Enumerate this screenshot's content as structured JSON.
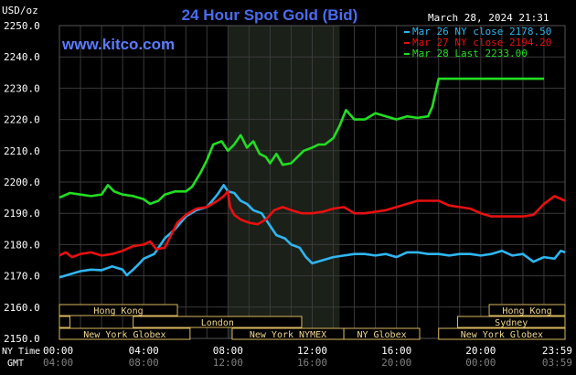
{
  "header": {
    "title": "24 Hour Spot Gold (Bid)",
    "unit_label": "USD/oz",
    "timestamp": "March 28, 2024 21:31",
    "site": "www.kitco.com"
  },
  "colors": {
    "background": "#000000",
    "grid": "#3a3a3a",
    "axis_text": "#ffffff",
    "title": "#4a6cf0",
    "site": "#5a7cff",
    "shade": "#1b2018",
    "band_text": "#f0d890",
    "band_border": "#d9b860"
  },
  "chart_data": {
    "type": "line",
    "title": "24 Hour Spot Gold (Bid)",
    "ylabel": "USD/oz",
    "xlabel": "",
    "ylim": [
      2150,
      2250
    ],
    "yticks": [
      2150,
      2160,
      2170,
      2180,
      2190,
      2200,
      2210,
      2220,
      2230,
      2240,
      2250
    ],
    "ytick_labels": [
      "2150.0",
      "2160.0",
      "2170.0",
      "2180.0",
      "2190.0",
      "2200.0",
      "2210.0",
      "2220.0",
      "2230.0",
      "2240.0",
      "2250.0"
    ],
    "xlim": [
      0,
      24
    ],
    "xticks": [
      0,
      4,
      8,
      12,
      16,
      20,
      24
    ],
    "xtick_labels_ny": [
      "00:00",
      "04:00",
      "08:00",
      "12:00",
      "16:00",
      "20:00",
      "23:59"
    ],
    "xtick_labels_gmt": [
      "04:00",
      "08:00",
      "12:00",
      "16:00",
      "20:00",
      "00:00",
      "03:59"
    ],
    "row_labels": {
      "ny": "NY Time",
      "gmt": "GMT"
    },
    "grid": true,
    "legend_position": "top-right",
    "shaded_x_range": [
      8.0,
      13.3
    ],
    "series": [
      {
        "name": "Mar 26 NY close 2178.50",
        "color": "#2fb6f0",
        "points": [
          [
            0,
            2169.5
          ],
          [
            0.5,
            2170.5
          ],
          [
            1,
            2171.5
          ],
          [
            1.5,
            2172
          ],
          [
            2,
            2171.8
          ],
          [
            2.5,
            2173
          ],
          [
            3,
            2172
          ],
          [
            3.2,
            2170.2
          ],
          [
            3.5,
            2172
          ],
          [
            3.8,
            2174
          ],
          [
            4,
            2175.5
          ],
          [
            4.5,
            2177
          ],
          [
            5,
            2182
          ],
          [
            5.5,
            2185
          ],
          [
            6,
            2189
          ],
          [
            6.5,
            2191
          ],
          [
            7,
            2192
          ],
          [
            7.5,
            2196
          ],
          [
            7.8,
            2199
          ],
          [
            8,
            2197
          ],
          [
            8.3,
            2196.5
          ],
          [
            8.6,
            2194
          ],
          [
            8.9,
            2193
          ],
          [
            9.2,
            2191
          ],
          [
            9.6,
            2190
          ],
          [
            10,
            2186
          ],
          [
            10.3,
            2183
          ],
          [
            10.7,
            2182
          ],
          [
            11,
            2180
          ],
          [
            11.4,
            2179
          ],
          [
            11.7,
            2176
          ],
          [
            12,
            2174
          ],
          [
            12.5,
            2175
          ],
          [
            13,
            2176
          ],
          [
            13.5,
            2176.5
          ],
          [
            14,
            2177
          ],
          [
            14.5,
            2177
          ],
          [
            15,
            2176.5
          ],
          [
            15.5,
            2177
          ],
          [
            16,
            2176
          ],
          [
            16.5,
            2177.5
          ],
          [
            17,
            2177.5
          ],
          [
            17.5,
            2177
          ],
          [
            18,
            2177
          ],
          [
            18.5,
            2176.5
          ],
          [
            19,
            2177
          ],
          [
            19.5,
            2177
          ],
          [
            20,
            2176.5
          ],
          [
            20.5,
            2177
          ],
          [
            21,
            2178
          ],
          [
            21.5,
            2176.5
          ],
          [
            22,
            2177
          ],
          [
            22.5,
            2174.5
          ],
          [
            23,
            2176
          ],
          [
            23.5,
            2175.5
          ],
          [
            23.8,
            2178
          ],
          [
            24,
            2177.5
          ]
        ]
      },
      {
        "name": "Mar 27 NY close 2194.20",
        "color": "#e81010",
        "points": [
          [
            0,
            2176.5
          ],
          [
            0.3,
            2177.5
          ],
          [
            0.6,
            2176
          ],
          [
            1,
            2177
          ],
          [
            1.5,
            2177.5
          ],
          [
            2,
            2176.5
          ],
          [
            2.5,
            2177
          ],
          [
            3,
            2178
          ],
          [
            3.5,
            2179.5
          ],
          [
            4,
            2180
          ],
          [
            4.3,
            2181
          ],
          [
            4.6,
            2178.5
          ],
          [
            5,
            2179
          ],
          [
            5.3,
            2183
          ],
          [
            5.6,
            2187
          ],
          [
            6,
            2189.5
          ],
          [
            6.5,
            2191.5
          ],
          [
            7,
            2192
          ],
          [
            7.5,
            2194
          ],
          [
            7.8,
            2195.5
          ],
          [
            8,
            2197
          ],
          [
            8.1,
            2192
          ],
          [
            8.3,
            2189.5
          ],
          [
            8.6,
            2188
          ],
          [
            9,
            2187
          ],
          [
            9.4,
            2186.5
          ],
          [
            9.8,
            2188
          ],
          [
            10.2,
            2191
          ],
          [
            10.6,
            2192
          ],
          [
            11,
            2191
          ],
          [
            11.5,
            2190
          ],
          [
            12,
            2190
          ],
          [
            12.5,
            2190.5
          ],
          [
            13,
            2191.5
          ],
          [
            13.5,
            2192
          ],
          [
            14,
            2190
          ],
          [
            14.5,
            2190
          ],
          [
            15,
            2190.5
          ],
          [
            15.5,
            2191
          ],
          [
            16,
            2192
          ],
          [
            16.5,
            2193
          ],
          [
            17,
            2194
          ],
          [
            17.5,
            2194
          ],
          [
            18,
            2194
          ],
          [
            18.5,
            2192.5
          ],
          [
            19,
            2192
          ],
          [
            19.5,
            2191.5
          ],
          [
            20,
            2190
          ],
          [
            20.5,
            2189
          ],
          [
            21,
            2189
          ],
          [
            21.5,
            2189
          ],
          [
            22,
            2189
          ],
          [
            22.5,
            2189.5
          ],
          [
            23,
            2193
          ],
          [
            23.5,
            2195.5
          ],
          [
            24,
            2194
          ]
        ]
      },
      {
        "name": "Mar 28 Last 2233.00",
        "color": "#22dd22",
        "points": [
          [
            0,
            2195
          ],
          [
            0.5,
            2196.5
          ],
          [
            1,
            2196
          ],
          [
            1.5,
            2195.5
          ],
          [
            2,
            2196
          ],
          [
            2.3,
            2199
          ],
          [
            2.6,
            2197
          ],
          [
            3,
            2196
          ],
          [
            3.5,
            2195.5
          ],
          [
            4,
            2194.5
          ],
          [
            4.3,
            2193
          ],
          [
            4.7,
            2194
          ],
          [
            5,
            2196
          ],
          [
            5.5,
            2197
          ],
          [
            6,
            2197
          ],
          [
            6.3,
            2198.5
          ],
          [
            6.7,
            2203
          ],
          [
            7,
            2207
          ],
          [
            7.3,
            2212
          ],
          [
            7.7,
            2213
          ],
          [
            8,
            2210
          ],
          [
            8.3,
            2212
          ],
          [
            8.6,
            2215
          ],
          [
            8.9,
            2211
          ],
          [
            9.2,
            2213
          ],
          [
            9.5,
            2209
          ],
          [
            9.8,
            2208
          ],
          [
            10,
            2206
          ],
          [
            10.3,
            2209
          ],
          [
            10.6,
            2205.5
          ],
          [
            11,
            2206
          ],
          [
            11.3,
            2208
          ],
          [
            11.6,
            2210
          ],
          [
            12,
            2211
          ],
          [
            12.3,
            2212
          ],
          [
            12.6,
            2212
          ],
          [
            13,
            2214
          ],
          [
            13.3,
            2218
          ],
          [
            13.6,
            2223
          ],
          [
            14,
            2220
          ],
          [
            14.5,
            2220
          ],
          [
            15,
            2222
          ],
          [
            15.5,
            2221
          ],
          [
            16,
            2220
          ],
          [
            16.5,
            2221
          ],
          [
            17,
            2220.5
          ],
          [
            17.5,
            2221
          ],
          [
            17.7,
            2224
          ],
          [
            18,
            2233
          ],
          [
            18.5,
            2233
          ],
          [
            19,
            2233
          ],
          [
            20,
            2233
          ],
          [
            21,
            2233
          ],
          [
            22,
            2233
          ],
          [
            23,
            2233
          ]
        ]
      }
    ],
    "market_bands": [
      {
        "label": "Hong Kong",
        "start": 0,
        "end": 5.6,
        "row": 0
      },
      {
        "label": "London",
        "start": 0,
        "end": 0.5,
        "row": 1
      },
      {
        "label": "London",
        "start": 3.5,
        "end": 11.5,
        "row": 1
      },
      {
        "label": "New York Globex",
        "start": 0,
        "end": 6.2,
        "row": 2
      },
      {
        "label": "New York NYMEX",
        "start": 8.2,
        "end": 13.5,
        "row": 2
      },
      {
        "label": "NY Globex",
        "start": 13.5,
        "end": 17.1,
        "row": 2
      },
      {
        "label": "Hong Kong",
        "start": 20.4,
        "end": 24,
        "row": 0
      },
      {
        "label": "Sydney",
        "start": 18.9,
        "end": 24,
        "row": 1
      },
      {
        "label": "New York Globex",
        "start": 18,
        "end": 24,
        "row": 2
      }
    ]
  }
}
